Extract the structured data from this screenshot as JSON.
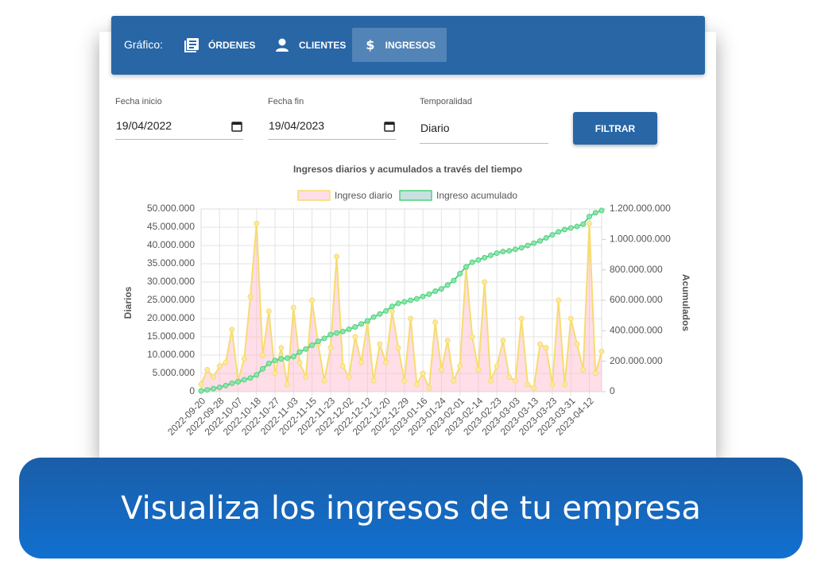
{
  "nav": {
    "label": "Gráfico:",
    "tabs": [
      "ÓRDENES",
      "CLIENTES",
      "INGRESOS"
    ],
    "active": 2
  },
  "filters": {
    "start": {
      "label": "Fecha inicio",
      "value": "19/04/2022"
    },
    "end": {
      "label": "Fecha fin",
      "value": "19/04/2023"
    },
    "period": {
      "label": "Temporalidad",
      "value": "Diario"
    },
    "button": "FILTRAR"
  },
  "chart_data": {
    "type": "line",
    "title": "Ingresos diarios y acumulados a través del tiempo",
    "ylabel": "Diarios",
    "y2label": "Acumulados",
    "legend": "top",
    "grid": true,
    "categories": [
      "2022-09-20",
      null,
      null,
      "2022-09-28",
      null,
      null,
      "2022-10-07",
      null,
      null,
      "2022-10-18",
      null,
      null,
      "2022-10-27",
      null,
      null,
      "2022-11-03",
      null,
      null,
      "2022-11-15",
      null,
      null,
      "2022-11-23",
      null,
      null,
      "2022-12-02",
      null,
      null,
      "2022-12-12",
      null,
      null,
      "2022-12-20",
      null,
      null,
      "2022-12-29",
      null,
      null,
      "2023-01-16",
      null,
      null,
      "2023-01-24",
      null,
      null,
      "2023-02-01",
      null,
      null,
      "2023-02-14",
      null,
      null,
      "2023-02-23",
      null,
      null,
      "2023-03-03",
      null,
      null,
      "2023-03-13",
      null,
      null,
      "2023-03-23",
      null,
      null,
      "2023-03-31",
      null,
      null,
      "2023-04-12",
      null,
      null
    ],
    "series": [
      {
        "name": "Ingreso diario",
        "color": "#f7dc6f",
        "fill": "rgba(255,182,203,0.45)",
        "values": [
          2000000,
          6000000,
          4000000,
          7000000,
          8000000,
          17000000,
          3000000,
          9000000,
          26000000,
          46000000,
          10000000,
          22000000,
          5000000,
          12000000,
          2000000,
          23000000,
          8000000,
          4000000,
          25000000,
          13000000,
          3000000,
          12000000,
          37000000,
          7000000,
          4000000,
          15000000,
          8000000,
          19000000,
          3000000,
          13000000,
          8000000,
          22000000,
          12000000,
          3000000,
          20000000,
          2000000,
          5000000,
          1000000,
          19000000,
          6000000,
          14000000,
          3000000,
          7000000,
          34000000,
          15000000,
          6000000,
          30000000,
          3000000,
          7000000,
          14000000,
          4000000,
          3000000,
          20000000,
          2000000,
          1000000,
          13000000,
          12000000,
          2000000,
          25000000,
          2000000,
          20000000,
          13000000,
          6000000,
          46000000,
          5000000,
          11000000
        ]
      },
      {
        "name": "Ingreso acumulado",
        "color": "#4fd27f",
        "fill": "rgba(176,212,210,0.7)",
        "axis": "y2",
        "values": [
          5000000,
          12000000,
          20000000,
          28000000,
          40000000,
          55000000,
          65000000,
          78000000,
          90000000,
          110000000,
          150000000,
          185000000,
          205000000,
          215000000,
          220000000,
          230000000,
          260000000,
          280000000,
          305000000,
          330000000,
          350000000,
          375000000,
          385000000,
          395000000,
          410000000,
          425000000,
          445000000,
          465000000,
          490000000,
          510000000,
          530000000,
          560000000,
          580000000,
          590000000,
          600000000,
          610000000,
          625000000,
          640000000,
          660000000,
          675000000,
          700000000,
          730000000,
          775000000,
          820000000,
          850000000,
          865000000,
          880000000,
          895000000,
          910000000,
          920000000,
          925000000,
          935000000,
          945000000,
          960000000,
          975000000,
          990000000,
          1010000000,
          1030000000,
          1050000000,
          1065000000,
          1075000000,
          1085000000,
          1100000000,
          1150000000,
          1175000000,
          1190000000
        ]
      }
    ],
    "ylim": [
      0,
      50000000
    ],
    "yticks": [
      0,
      {
        "value": 5000000,
        "label": "5.000.000"
      },
      {
        "value": 10000000,
        "label": "10.000.000"
      },
      {
        "value": 15000000,
        "label": "15.000.000"
      },
      {
        "value": 20000000,
        "label": "20.000.000"
      },
      {
        "value": 25000000,
        "label": "25.000.000"
      },
      {
        "value": 30000000,
        "label": "30.000.000"
      },
      {
        "value": 35000000,
        "label": "35.000.000"
      },
      {
        "value": 40000000,
        "label": "40.000.000"
      },
      {
        "value": 45000000,
        "label": "45.000.000"
      },
      {
        "value": 50000000,
        "label": "50.000.000"
      }
    ],
    "y2lim": [
      0,
      1200000000
    ],
    "y2ticks": [
      0,
      {
        "value": 200000000,
        "label": "200.000.000"
      },
      {
        "value": 400000000,
        "label": "400.000.000"
      },
      {
        "value": 600000000,
        "label": "600.000.000"
      },
      {
        "value": 800000000,
        "label": "800.000.000"
      },
      {
        "value": 1000000000,
        "label": "1.000.000.000"
      },
      {
        "value": 1200000000,
        "label": "1.200.000.000"
      }
    ]
  },
  "banner": {
    "text": "Visualiza los ingresos de tu empresa"
  }
}
